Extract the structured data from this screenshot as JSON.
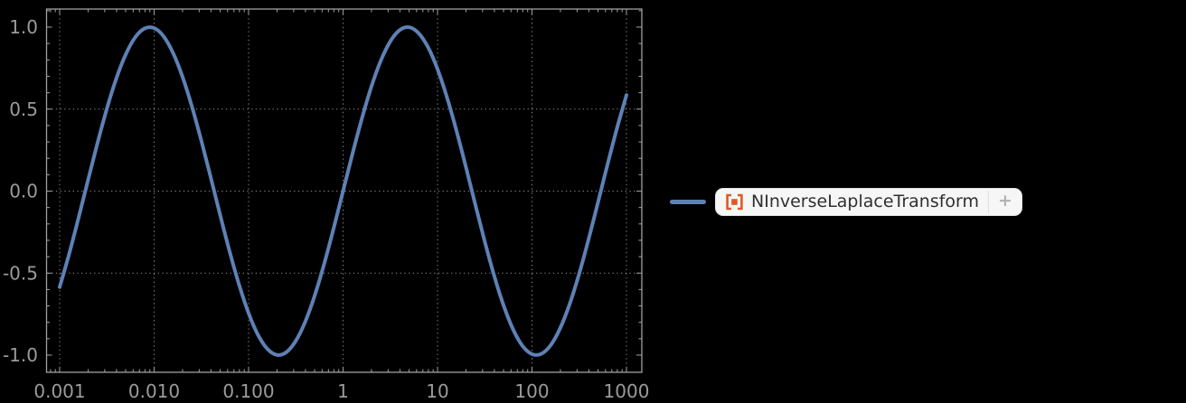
{
  "colors": {
    "background": "#000000",
    "curve": "#5E81B5",
    "frame": "#a0a0a0",
    "grid": "#8a8a8a",
    "tick_labels": "#9b9b9b",
    "legend_chip_bg": "#f6f6f6",
    "legend_chip_border": "#e3e3e3",
    "legend_text": "#303030",
    "legend_divider": "#dedede",
    "plus": "#b3b3b3",
    "resource_icon": "#DC5A28"
  },
  "chart_data": {
    "type": "line",
    "title": "",
    "xlabel": "",
    "ylabel": "",
    "x_scale": "log10",
    "xlim": [
      0.001,
      1000
    ],
    "ylim": [
      -1,
      1
    ],
    "grid_style": "dotted",
    "legend_position": "right",
    "x_ticks": [
      {
        "value": 0.001,
        "label": "0.001"
      },
      {
        "value": 0.01,
        "label": "0.010"
      },
      {
        "value": 0.1,
        "label": "0.100"
      },
      {
        "value": 1,
        "label": "1"
      },
      {
        "value": 10,
        "label": "10"
      },
      {
        "value": 100,
        "label": "100"
      },
      {
        "value": 1000,
        "label": "1000"
      }
    ],
    "y_ticks": [
      {
        "value": 1,
        "label": "1.0"
      },
      {
        "value": 0.5,
        "label": "0.5"
      },
      {
        "value": 0,
        "label": "0.0"
      },
      {
        "value": -0.5,
        "label": "-0.5"
      },
      {
        "value": -1,
        "label": "-1.0"
      }
    ],
    "x_gridlines_log10": [
      -3,
      -2,
      -1,
      0,
      1,
      2,
      3
    ],
    "y_gridlines": [
      0.5,
      0,
      -0.5
    ],
    "series": [
      {
        "name": "NInverseLaplaceTransform",
        "color": "#5E81B5",
        "x_log10": [
          -3.0,
          -2.9,
          -2.8,
          -2.7,
          -2.6,
          -2.5,
          -2.4,
          -2.3,
          -2.2,
          -2.1,
          -2.0,
          -1.9,
          -1.8,
          -1.7,
          -1.6,
          -1.5,
          -1.4,
          -1.3,
          -1.2,
          -1.1,
          -1.0,
          -0.9,
          -0.8,
          -0.7,
          -0.6,
          -0.5,
          -0.4,
          -0.3,
          -0.2,
          -0.1,
          0.0,
          0.1,
          0.2,
          0.3,
          0.4,
          0.5,
          0.6,
          0.7,
          0.8,
          0.9,
          1.0,
          1.1,
          1.2,
          1.3,
          1.4,
          1.5,
          1.6,
          1.7,
          1.8,
          1.9,
          2.0,
          2.1,
          2.2,
          2.3,
          2.4,
          2.5,
          2.6,
          2.7,
          2.8,
          2.9,
          3.0
        ],
        "y": [
          -0.585,
          -0.384,
          -0.163,
          0.066,
          0.292,
          0.503,
          0.687,
          0.834,
          0.938,
          0.992,
          0.994,
          0.944,
          0.843,
          0.698,
          0.516,
          0.307,
          0.082,
          -0.148,
          -0.37,
          -0.572,
          -0.744,
          -0.877,
          -0.963,
          -0.999,
          -0.982,
          -0.913,
          -0.796,
          -0.637,
          -0.444,
          -0.228,
          0.0,
          0.228,
          0.444,
          0.637,
          0.796,
          0.913,
          0.982,
          0.999,
          0.963,
          0.877,
          0.744,
          0.572,
          0.37,
          0.148,
          -0.082,
          -0.307,
          -0.516,
          -0.698,
          -0.843,
          -0.944,
          -0.994,
          -0.992,
          -0.938,
          -0.834,
          -0.687,
          -0.503,
          -0.292,
          -0.066,
          0.163,
          0.384,
          0.585
        ]
      }
    ]
  },
  "legend": {
    "label": "NInverseLaplaceTransform",
    "plus_label": "+"
  }
}
